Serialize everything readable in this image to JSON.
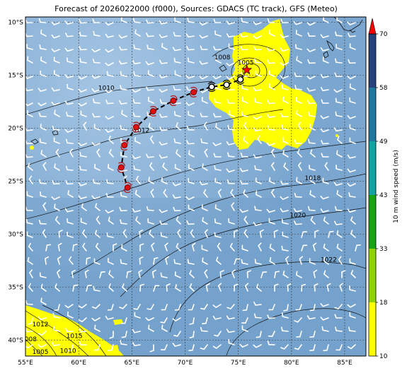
{
  "title": "Forecast of 2026022000 (f000), Sources: GDACS (TC track), GFS (Meteo)",
  "map": {
    "lon_range": [
      55,
      87
    ],
    "lat_range": [
      -41.5,
      -9.5
    ],
    "lon_ticks": [
      {
        "value": 55,
        "label": "55°E"
      },
      {
        "value": 60,
        "label": "60°E"
      },
      {
        "value": 65,
        "label": "65°E"
      },
      {
        "value": 70,
        "label": "70°E"
      },
      {
        "value": 75,
        "label": "75°E"
      },
      {
        "value": 80,
        "label": "80°E"
      },
      {
        "value": 85,
        "label": "85°E"
      }
    ],
    "lat_ticks": [
      {
        "value": -10,
        "label": "10°S"
      },
      {
        "value": -15,
        "label": "15°S"
      },
      {
        "value": -20,
        "label": "20°S"
      },
      {
        "value": -25,
        "label": "25°S"
      },
      {
        "value": -30,
        "label": "30°S"
      },
      {
        "value": -35,
        "label": "35°S"
      },
      {
        "value": -40,
        "label": "40°S"
      }
    ],
    "background_color": "#7ba7cf",
    "strong_wind_color": "#ffff00",
    "track_points": [
      {
        "lon": 75.8,
        "lat": -14.5,
        "marker": "current-position-star"
      },
      {
        "lon": 75.2,
        "lat": -15.4,
        "marker": "low"
      },
      {
        "lon": 73.9,
        "lat": -15.9,
        "marker": "low"
      },
      {
        "lon": 72.5,
        "lat": -16.1,
        "marker": "low"
      },
      {
        "lon": 70.8,
        "lat": -16.6,
        "marker": "storm"
      },
      {
        "lon": 68.9,
        "lat": -17.4,
        "marker": "storm"
      },
      {
        "lon": 67.0,
        "lat": -18.4,
        "marker": "storm"
      },
      {
        "lon": 65.4,
        "lat": -19.9,
        "marker": "storm"
      },
      {
        "lon": 64.3,
        "lat": -21.6,
        "marker": "storm"
      },
      {
        "lon": 64.0,
        "lat": -23.7,
        "marker": "storm"
      },
      {
        "lon": 64.6,
        "lat": -25.6,
        "marker": "storm"
      }
    ],
    "isobar_labels": [
      {
        "text": "1010",
        "lon": 62.6,
        "lat": -16.4
      },
      {
        "text": "1008",
        "lon": 73.5,
        "lat": -13.5
      },
      {
        "text": "1005",
        "lon": 75.7,
        "lat": -14.0
      },
      {
        "text": "1012",
        "lon": 65.9,
        "lat": -20.4
      },
      {
        "text": "1018",
        "lon": 82.0,
        "lat": -24.9
      },
      {
        "text": "1020",
        "lon": 80.6,
        "lat": -28.4
      },
      {
        "text": "1022",
        "lon": 83.5,
        "lat": -32.6
      },
      {
        "text": "1012",
        "lon": 56.4,
        "lat": -38.7
      },
      {
        "text": "1015",
        "lon": 59.6,
        "lat": -39.8
      },
      {
        "text": "1008",
        "lon": 55.3,
        "lat": -40.1
      },
      {
        "text": "1005",
        "lon": 56.4,
        "lat": -41.3
      },
      {
        "text": "1010",
        "lon": 59.0,
        "lat": -41.2
      }
    ]
  },
  "colorbar": {
    "label": "10 m wind speed (m/s)",
    "ticks": [
      "10",
      "18",
      "33",
      "43",
      "49",
      "58",
      "70"
    ],
    "colors": [
      "#ffff00",
      "#8fd400",
      "#16a316",
      "#14a3a3",
      "#1f78a0",
      "#26427a",
      "#1e2b5c"
    ],
    "extend_color": "#ff0000"
  }
}
